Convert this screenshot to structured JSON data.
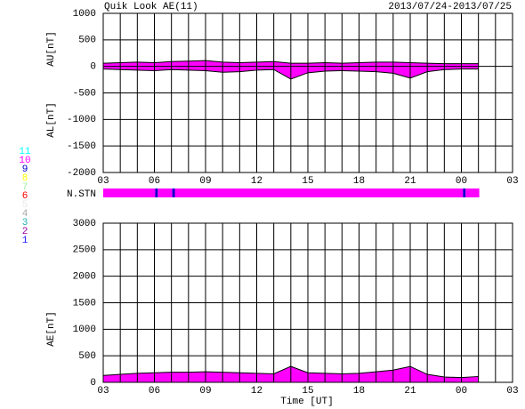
{
  "chart_data": [
    {
      "type": "area",
      "title": "Quik Look AE(11)",
      "date": "2013/07/24-2013/07/25",
      "x": [
        3,
        4,
        5,
        6,
        7,
        8,
        9,
        10,
        11,
        12,
        13,
        14,
        15,
        16,
        17,
        18,
        19,
        20,
        21,
        22,
        23,
        24,
        25
      ],
      "series": [
        {
          "name": "AU[nT]",
          "color": "#ff00ff",
          "values": [
            60,
            70,
            80,
            70,
            90,
            100,
            110,
            80,
            70,
            80,
            90,
            60,
            60,
            70,
            60,
            70,
            80,
            80,
            70,
            60,
            50,
            50,
            50
          ]
        },
        {
          "name": "AL[nT]",
          "color": "#ff00ff",
          "values": [
            -50,
            -60,
            -70,
            -80,
            -60,
            -70,
            -80,
            -110,
            -100,
            -70,
            -60,
            -240,
            -120,
            -90,
            -80,
            -90,
            -100,
            -130,
            -220,
            -100,
            -60,
            -50,
            -50
          ]
        }
      ],
      "xlim": [
        3,
        27
      ],
      "xticks": [
        {
          "value": 3,
          "label": "03"
        },
        {
          "value": 6,
          "label": "06"
        },
        {
          "value": 9,
          "label": "09"
        },
        12,
        15,
        18,
        21,
        {
          "value": 24,
          "label": "00"
        },
        {
          "value": 27,
          "label": "03"
        }
      ],
      "xgrid": [
        3,
        4,
        5,
        6,
        7,
        8,
        9,
        10,
        11,
        12,
        13,
        14,
        15,
        16,
        17,
        18,
        19,
        20,
        21,
        22,
        23,
        24,
        25,
        26,
        27
      ],
      "ylim": [
        -2000,
        1000
      ],
      "yticks": [
        -2000,
        -1500,
        -1000,
        -500,
        0,
        500,
        1000
      ]
    },
    {
      "type": "strip",
      "label": "N.STN",
      "bins": [
        3,
        6.05,
        6.2,
        7.05,
        7.2,
        24.1,
        24.25,
        25.05
      ],
      "values": [
        10,
        9,
        10,
        9,
        10,
        9,
        10
      ],
      "levels": [
        11,
        10,
        9,
        8,
        7,
        6,
        5,
        4,
        3,
        2,
        1
      ],
      "colors": [
        "#00ffff",
        "#ff00ff",
        "#0000cc",
        "#ffff00",
        "#a0f0a0",
        "#ff0000",
        "#e8e8e8",
        "#a8a8a8",
        "#20b0b0",
        "#a000a0",
        "#2020ff"
      ],
      "xlim": [
        3,
        27
      ]
    },
    {
      "type": "area",
      "x_label": "Time [UT]",
      "x": [
        3,
        4,
        5,
        6,
        7,
        8,
        9,
        10,
        11,
        12,
        13,
        14,
        15,
        16,
        17,
        18,
        19,
        20,
        21,
        22,
        23,
        24,
        25
      ],
      "series": [
        {
          "name": "AE[nT]",
          "color": "#ff00ff",
          "values": [
            130,
            150,
            170,
            180,
            190,
            190,
            200,
            190,
            180,
            170,
            160,
            300,
            180,
            170,
            160,
            170,
            200,
            230,
            300,
            150,
            100,
            90,
            110
          ]
        }
      ],
      "xlim": [
        3,
        27
      ],
      "xticks": [
        {
          "value": 3,
          "label": "03"
        },
        {
          "value": 6,
          "label": "06"
        },
        {
          "value": 9,
          "label": "09"
        },
        12,
        15,
        18,
        21,
        {
          "value": 24,
          "label": "00"
        },
        {
          "value": 27,
          "label": "03"
        }
      ],
      "xgrid": [
        3,
        4,
        5,
        6,
        7,
        8,
        9,
        10,
        11,
        12,
        13,
        14,
        15,
        16,
        17,
        18,
        19,
        20,
        21,
        22,
        23,
        24,
        25,
        26,
        27
      ],
      "ylim": [
        0,
        3000
      ],
      "yticks": [
        0,
        500,
        1000,
        1500,
        2000,
        2500,
        3000
      ]
    }
  ]
}
